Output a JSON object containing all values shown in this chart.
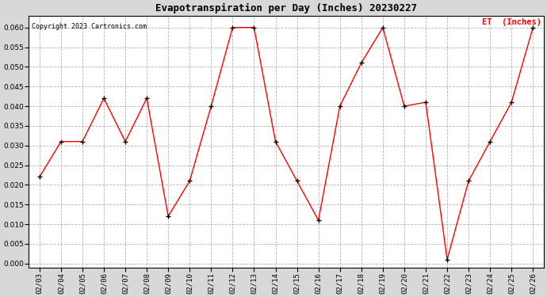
{
  "title": "Evapotranspiration per Day (Inches) 20230227",
  "copyright": "Copyright 2023 Cartronics.com",
  "legend_label": "ET  (Inches)",
  "dates": [
    "02/03",
    "02/04",
    "02/05",
    "02/06",
    "02/07",
    "02/08",
    "02/09",
    "02/10",
    "02/11",
    "02/12",
    "02/13",
    "02/14",
    "02/15",
    "02/16",
    "02/17",
    "02/18",
    "02/19",
    "02/20",
    "02/21",
    "02/22",
    "02/23",
    "02/24",
    "02/25",
    "02/26"
  ],
  "values": [
    0.022,
    0.031,
    0.031,
    0.042,
    0.031,
    0.042,
    0.012,
    0.021,
    0.04,
    0.06,
    0.06,
    0.031,
    0.021,
    0.011,
    0.04,
    0.051,
    0.06,
    0.04,
    0.041,
    0.001,
    0.021,
    0.031,
    0.041,
    0.06
  ],
  "line_color": "red",
  "marker_color": "black",
  "marker_style": "+",
  "ylim": [
    -0.001,
    0.063
  ],
  "yticks": [
    0.0,
    0.005,
    0.01,
    0.015,
    0.02,
    0.025,
    0.03,
    0.035,
    0.04,
    0.045,
    0.05,
    0.055,
    0.06
  ],
  "background_color": "#d8d8d8",
  "plot_bg_color": "white",
  "grid_color": "#aaaaaa",
  "title_fontsize": 9,
  "copyright_fontsize": 6,
  "legend_fontsize": 7.5,
  "tick_fontsize": 6.5,
  "legend_color": "red"
}
